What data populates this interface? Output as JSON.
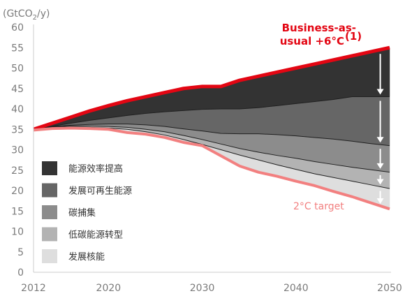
{
  "chart_data": {
    "type": "area",
    "y_unit": "(GtCO₂/y)",
    "y_unit_parts": {
      "a": "(GtCO",
      "sub": "2",
      "b": "/y)"
    },
    "ylim": [
      0,
      60
    ],
    "y_ticks": [
      "0",
      "5",
      "10",
      "15",
      "20",
      "25",
      "30",
      "35",
      "40",
      "45",
      "50",
      "55",
      "60"
    ],
    "xlim": [
      2012,
      2050
    ],
    "x_ticks": [
      "2012",
      "2020",
      "2030",
      "2040",
      "2050"
    ],
    "x": [
      2012,
      2014,
      2016,
      2018,
      2020,
      2022,
      2024,
      2026,
      2028,
      2030,
      2032,
      2034,
      2036,
      2038,
      2040,
      2042,
      2044,
      2046,
      2048,
      2050
    ],
    "boundaries": {
      "business_as_usual": [
        35,
        36.5,
        38.0,
        39.5,
        40.8,
        42.0,
        43.0,
        44.0,
        45.0,
        45.5,
        45.5,
        47.0,
        48.0,
        49.0,
        50.0,
        51.0,
        52.0,
        53.0,
        54.0,
        55.0
      ],
      "b1": [
        35,
        35.8,
        36.5,
        37.2,
        37.8,
        38.4,
        38.9,
        39.3,
        39.6,
        39.9,
        40.0,
        40.0,
        40.3,
        40.8,
        41.3,
        41.8,
        42.3,
        43.0,
        43.0,
        43.0
      ],
      "b2": [
        35,
        35.7,
        36.0,
        36.2,
        36.3,
        36.3,
        36.1,
        35.7,
        35.1,
        34.6,
        34.0,
        33.9,
        33.9,
        33.7,
        33.4,
        33.0,
        32.6,
        32.1,
        31.5,
        31.0
      ],
      "b3": [
        35,
        35.6,
        35.8,
        35.8,
        35.7,
        35.5,
        35.0,
        34.4,
        33.5,
        32.5,
        31.4,
        30.3,
        29.4,
        28.6,
        27.9,
        27.1,
        26.4,
        25.7,
        25.1,
        24.5
      ],
      "b4": [
        35,
        35.5,
        35.6,
        35.5,
        35.3,
        35.0,
        34.4,
        33.6,
        32.5,
        31.3,
        30.0,
        28.7,
        27.5,
        26.3,
        25.2,
        24.1,
        23.2,
        22.3,
        21.4,
        20.5
      ],
      "target_2c": [
        34.8,
        35.2,
        35.3,
        35.2,
        35.0,
        34.2,
        33.8,
        33.0,
        31.8,
        31.0,
        28.5,
        26.0,
        24.5,
        23.5,
        22.3,
        21.2,
        19.8,
        18.5,
        17.0,
        15.5
      ]
    },
    "series": [
      {
        "name": "能源效率提高",
        "color": "#333333",
        "upper": "business_as_usual",
        "lower": "b1"
      },
      {
        "name": "发展可再生能源",
        "color": "#666666",
        "upper": "b1",
        "lower": "b2"
      },
      {
        "name": "碳捕集",
        "color": "#8c8c8c",
        "upper": "b2",
        "lower": "b3"
      },
      {
        "name": "低碳能源转型",
        "color": "#b3b3b3",
        "upper": "b3",
        "lower": "b4"
      },
      {
        "name": "发展核能",
        "color": "#dedede",
        "upper": "b4",
        "lower": "target_2c"
      }
    ],
    "lines": [
      {
        "boundary": "business_as_usual",
        "color": "#e30613",
        "label_lines": [
          "Business-as-",
          "usual +6°C"
        ],
        "label_sup": "(1)"
      },
      {
        "boundary": "target_2c",
        "color": "#f28080",
        "label_lines": [
          "2°C target"
        ]
      }
    ],
    "arrow_x": 2049,
    "grid": false,
    "legend_position": "left"
  }
}
